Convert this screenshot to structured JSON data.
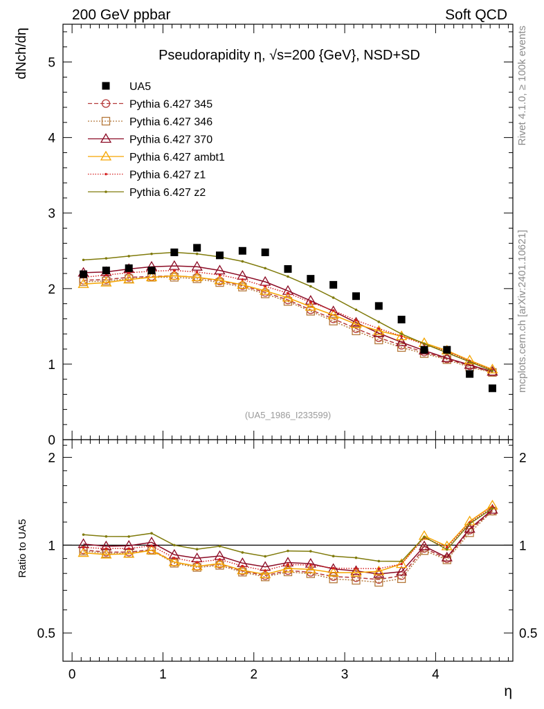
{
  "header": {
    "left": "200 GeV ppbar",
    "right": "Soft QCD"
  },
  "side_labels": {
    "rivet": "Rivet 4.1.0, ≥ 100k events",
    "mcplots": "mcplots.cern.ch [arXiv:2401.10621]"
  },
  "chart_data": {
    "type": "scatter",
    "title": "Pseudorapidity η, √s=200 {GeV}, NSD+SD",
    "watermark": "(UA5_1986_I233599)",
    "xlabel": "η",
    "ylabel_main": "dNch/dη",
    "ylabel_ratio": "Ratio to UA5",
    "xlim": [
      -0.1,
      4.85
    ],
    "ylim_main": [
      0,
      5.5
    ],
    "ylim_ratio": [
      0.4,
      2.3
    ],
    "ratio_scale": "log",
    "x_ticks": [
      "0",
      "1",
      "2",
      "3",
      "4"
    ],
    "y_ticks_main": [
      "0",
      "1",
      "2",
      "3",
      "4",
      "5"
    ],
    "y_ticks_ratio": [
      "0.5",
      "1",
      "2"
    ],
    "x": [
      0.125,
      0.375,
      0.625,
      0.875,
      1.125,
      1.375,
      1.625,
      1.875,
      2.125,
      2.375,
      2.625,
      2.875,
      3.125,
      3.375,
      3.625,
      3.875,
      4.125,
      4.375,
      4.625
    ],
    "data": {
      "name": "UA5",
      "values": [
        2.19,
        2.24,
        2.27,
        2.24,
        2.48,
        2.54,
        2.44,
        2.5,
        2.48,
        2.26,
        2.13,
        2.05,
        1.9,
        1.77,
        1.59,
        1.19,
        1.19,
        0.87,
        0.68
      ]
    },
    "series": [
      {
        "name": "Pythia 6.427 345",
        "color": "#b53a3a",
        "dash": "6,3",
        "marker": "circle",
        "values": [
          2.11,
          2.12,
          2.15,
          2.16,
          2.17,
          2.15,
          2.1,
          2.04,
          1.95,
          1.85,
          1.72,
          1.6,
          1.47,
          1.35,
          1.25,
          1.16,
          1.07,
          0.98,
          0.89
        ]
      },
      {
        "name": "Pythia 6.427 346",
        "color": "#b5783a",
        "dash": "2,2",
        "marker": "square",
        "values": [
          2.09,
          2.1,
          2.13,
          2.15,
          2.15,
          2.13,
          2.08,
          2.02,
          1.93,
          1.83,
          1.7,
          1.57,
          1.44,
          1.32,
          1.22,
          1.14,
          1.06,
          0.96,
          0.89
        ]
      },
      {
        "name": "Pythia 6.427 370",
        "color": "#8b0a24",
        "dash": "",
        "marker": "triangle",
        "values": [
          2.21,
          2.22,
          2.26,
          2.29,
          2.3,
          2.29,
          2.24,
          2.17,
          2.09,
          1.97,
          1.84,
          1.7,
          1.55,
          1.41,
          1.29,
          1.18,
          1.08,
          0.99,
          0.9
        ]
      },
      {
        "name": "Pythia 6.427 ambt1",
        "color": "#f5a500",
        "dash": "",
        "marker": "triangle",
        "values": [
          2.06,
          2.08,
          2.12,
          2.15,
          2.17,
          2.15,
          2.11,
          2.05,
          1.97,
          1.88,
          1.76,
          1.65,
          1.53,
          1.44,
          1.37,
          1.28,
          1.18,
          1.05,
          0.93
        ]
      },
      {
        "name": "Pythia 6.427 z1",
        "color": "#d42020",
        "dash": "1.5,2",
        "marker": "dot",
        "values": [
          2.15,
          2.18,
          2.21,
          2.23,
          2.24,
          2.22,
          2.18,
          2.12,
          2.03,
          1.94,
          1.82,
          1.71,
          1.58,
          1.47,
          1.37,
          1.26,
          1.17,
          1.04,
          0.92
        ]
      },
      {
        "name": "Pythia 6.427 z2",
        "color": "#7f7a0a",
        "dash": "",
        "marker": "dot",
        "values": [
          2.38,
          2.4,
          2.43,
          2.46,
          2.48,
          2.46,
          2.42,
          2.36,
          2.27,
          2.16,
          2.03,
          1.88,
          1.72,
          1.56,
          1.4,
          1.27,
          1.15,
          1.03,
          0.91
        ]
      }
    ]
  }
}
